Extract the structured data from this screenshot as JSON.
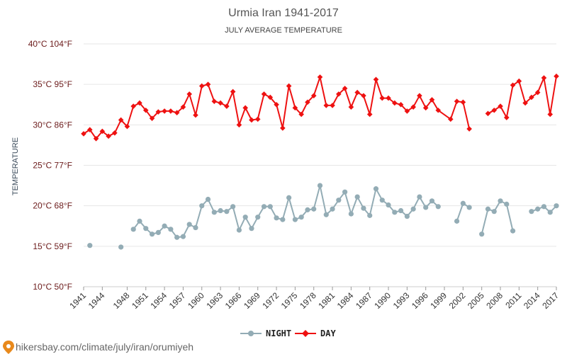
{
  "chart_data": {
    "type": "line",
    "title": "Urmia Iran 1941-2017",
    "subtitle": "JULY AVERAGE TEMPERATURE",
    "ylabel": "TEMPERATURE",
    "xlabel": "",
    "ylim": [
      10,
      40
    ],
    "xlim": [
      1941,
      2017
    ],
    "yticks": [
      {
        "value": 10,
        "label": "10°C 50°F"
      },
      {
        "value": 15,
        "label": "15°C 59°F"
      },
      {
        "value": 20,
        "label": "20°C 68°F"
      },
      {
        "value": 25,
        "label": "25°C 77°F"
      },
      {
        "value": 30,
        "label": "30°C 86°F"
      },
      {
        "value": 35,
        "label": "35°C 95°F"
      },
      {
        "value": 40,
        "label": "40°C 104°F"
      }
    ],
    "xticks": [
      "1941",
      "1944",
      "1948",
      "1951",
      "1954",
      "1957",
      "1960",
      "1963",
      "1966",
      "1969",
      "1972",
      "1975",
      "1978",
      "1981",
      "1984",
      "1987",
      "1990",
      "1993",
      "1996",
      "1999",
      "2002",
      "2005",
      "2008",
      "2011",
      "2014",
      "2017"
    ],
    "grid": true,
    "legend_position": "bottom",
    "series": [
      {
        "name": "NIGHT",
        "color": "#93acb5",
        "x": [
          1942,
          1947,
          1949,
          1950,
          1951,
          1952,
          1953,
          1954,
          1955,
          1956,
          1957,
          1958,
          1959,
          1960,
          1961,
          1962,
          1963,
          1964,
          1965,
          1966,
          1967,
          1968,
          1969,
          1970,
          1971,
          1972,
          1973,
          1974,
          1975,
          1976,
          1977,
          1978,
          1979,
          1980,
          1981,
          1982,
          1983,
          1984,
          1985,
          1986,
          1987,
          1988,
          1989,
          1990,
          1991,
          1992,
          1993,
          1994,
          1995,
          1996,
          1997,
          1998,
          1999,
          2001,
          2002,
          2003,
          2005,
          2006,
          2007,
          2008,
          2009,
          2010,
          2013,
          2014,
          2015,
          2016,
          2017
        ],
        "values": [
          15.1,
          14.9,
          17.1,
          18.1,
          17.2,
          16.5,
          16.7,
          17.5,
          17.1,
          16.1,
          16.2,
          17.7,
          17.3,
          20.0,
          20.8,
          19.2,
          19.4,
          19.3,
          19.9,
          17.0,
          18.6,
          17.2,
          18.6,
          19.9,
          19.9,
          18.5,
          18.3,
          21.0,
          18.3,
          18.6,
          19.5,
          19.6,
          22.5,
          18.9,
          19.6,
          20.7,
          21.7,
          19.0,
          21.1,
          19.7,
          18.8,
          22.1,
          20.7,
          20.1,
          19.2,
          19.4,
          18.7,
          19.6,
          21.1,
          19.8,
          20.6,
          19.9,
          null,
          18.1,
          20.3,
          19.8,
          16.5,
          19.6,
          19.3,
          20.6,
          20.2,
          16.9,
          19.3,
          19.6,
          19.9,
          19.2,
          20.0
        ],
        "segments": [
          [
            1942
          ],
          [
            1947
          ],
          [
            1949,
            1999
          ],
          [
            2001,
            2003
          ],
          [
            2005,
            2010
          ],
          [
            2013,
            2017
          ]
        ]
      },
      {
        "name": "DAY",
        "color": "#ee1111",
        "x": [
          1941,
          1942,
          1943,
          1944,
          1945,
          1946,
          1947,
          1948,
          1949,
          1950,
          1951,
          1952,
          1953,
          1954,
          1955,
          1956,
          1957,
          1958,
          1959,
          1960,
          1961,
          1962,
          1963,
          1964,
          1965,
          1966,
          1967,
          1968,
          1969,
          1970,
          1971,
          1972,
          1973,
          1974,
          1975,
          1976,
          1977,
          1978,
          1979,
          1980,
          1981,
          1982,
          1983,
          1984,
          1985,
          1986,
          1987,
          1988,
          1989,
          1990,
          1991,
          1992,
          1993,
          1994,
          1995,
          1996,
          1997,
          1998,
          1999,
          2000,
          2001,
          2002,
          2003,
          2004,
          2006,
          2007,
          2008,
          2009,
          2010,
          2011,
          2012,
          2013,
          2014,
          2015,
          2016,
          2017
        ],
        "values": [
          28.9,
          29.4,
          28.3,
          29.2,
          28.6,
          29.0,
          30.6,
          29.8,
          32.3,
          32.7,
          31.8,
          30.8,
          31.6,
          31.7,
          31.7,
          31.5,
          32.2,
          33.8,
          31.2,
          34.8,
          35.0,
          32.9,
          32.7,
          32.3,
          34.1,
          30.0,
          32.1,
          30.6,
          30.7,
          33.8,
          33.4,
          32.5,
          29.6,
          34.8,
          32.1,
          31.3,
          32.8,
          33.6,
          35.9,
          32.4,
          32.4,
          33.8,
          34.5,
          32.2,
          34.0,
          33.6,
          31.3,
          35.6,
          33.3,
          33.3,
          32.7,
          32.5,
          31.7,
          32.2,
          33.6,
          32.1,
          33.1,
          31.8,
          null,
          30.7,
          32.9,
          32.8,
          29.5,
          null,
          31.4,
          31.8,
          32.3,
          30.9,
          34.9,
          35.4,
          32.7,
          33.4,
          34.0,
          35.8,
          31.3,
          36.0
        ],
        "segments": [
          [
            1941,
            2004
          ],
          [
            2006,
            2017
          ]
        ]
      }
    ]
  },
  "watermark": "hikersbay.com/climate/july/iran/orumiyeh"
}
